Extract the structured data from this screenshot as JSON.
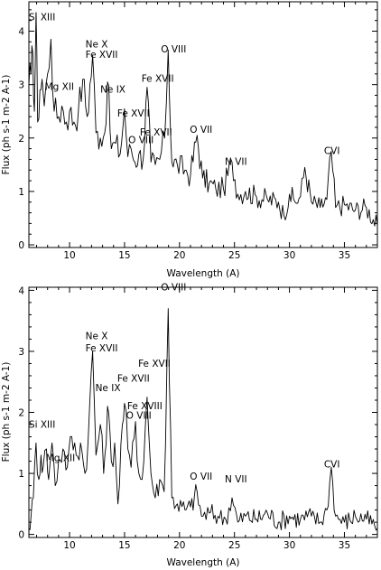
{
  "chart_data": [
    {
      "type": "line",
      "title": "",
      "xlabel": "Wavelength (A)",
      "ylabel": "Flux (ph s-1 m-2 A-1)",
      "xlim": [
        6.3,
        38
      ],
      "ylim": [
        -0.05,
        4.55
      ],
      "xticks": [
        "10",
        "15",
        "20",
        "25",
        "30",
        "35"
      ],
      "yticks": [
        "0",
        "1",
        "2",
        "3",
        "4"
      ],
      "grid": false,
      "series": [
        {
          "x": [
            6.3,
            6.5,
            6.65,
            6.8,
            6.95,
            7.1,
            7.3,
            7.5,
            7.7,
            8.0,
            8.3,
            8.6,
            9.0,
            9.3,
            9.7,
            10.0,
            10.4,
            10.8,
            11.2,
            11.6,
            12.1,
            12.4,
            12.8,
            13.2,
            13.45,
            13.8,
            14.2,
            14.6,
            15.0,
            15.3,
            15.6,
            15.95,
            16.3,
            16.7,
            17.05,
            17.4,
            17.8,
            18.2,
            18.65,
            18.97,
            19.3,
            19.8,
            20.5,
            21.0,
            21.6,
            22.1,
            22.7,
            23.3,
            24.0,
            24.78,
            25.3,
            26.0,
            27.0,
            28.0,
            29.0,
            29.5,
            30.0,
            30.5,
            31.0,
            31.4,
            32.0,
            32.8,
            33.4,
            33.8,
            34.2,
            35.0,
            36.0,
            37.0,
            38.0
          ],
          "values": [
            3.0,
            3.2,
            3.6,
            2.5,
            4.35,
            2.3,
            2.9,
            3.1,
            2.6,
            3.2,
            3.85,
            2.5,
            2.4,
            2.6,
            2.3,
            2.5,
            2.3,
            2.5,
            3.1,
            2.4,
            3.55,
            2.1,
            2.0,
            2.1,
            3.05,
            1.8,
            1.9,
            1.7,
            2.55,
            1.65,
            1.8,
            1.55,
            1.7,
            1.6,
            2.95,
            1.55,
            1.5,
            1.6,
            2.0,
            3.65,
            1.55,
            1.5,
            1.4,
            1.3,
            2.05,
            1.25,
            1.15,
            1.05,
            1.05,
            1.55,
            0.95,
            1.0,
            0.9,
            0.85,
            0.8,
            0.55,
            0.95,
            0.8,
            0.9,
            1.45,
            0.8,
            0.7,
            0.85,
            1.75,
            0.7,
            0.75,
            0.65,
            0.7,
            0.35
          ]
        }
      ],
      "annotations": [
        {
          "text": "Si XIII",
          "x": 6.95,
          "y": 4.2
        },
        {
          "text": "Ne X",
          "x": 12.1,
          "y": 3.7
        },
        {
          "text": "Fe XVII",
          "x": 12.1,
          "y": 3.5
        },
        {
          "text": "Mg XII",
          "x": 8.4,
          "y": 2.9
        },
        {
          "text": "Ne IX",
          "x": 13.45,
          "y": 2.85
        },
        {
          "text": "Fe XVII",
          "x": 15.0,
          "y": 2.4
        },
        {
          "text": "Fe XVII",
          "x": 17.05,
          "y": 2.05
        },
        {
          "text": "O VIII",
          "x": 16.0,
          "y": 1.9
        },
        {
          "text": "O VIII",
          "x": 18.97,
          "y": 3.6
        },
        {
          "text": "Fe XVII",
          "x": 17.2,
          "y": 3.05
        },
        {
          "text": "O VII",
          "x": 21.6,
          "y": 2.1
        },
        {
          "text": "N VII",
          "x": 24.78,
          "y": 1.5
        },
        {
          "text": "CVI",
          "x": 33.8,
          "y": 1.7
        }
      ]
    },
    {
      "type": "line",
      "title": "",
      "xlabel": "Wavelength (A)",
      "ylabel": "Flux (ph s-1 m-2 A-1)",
      "xlim": [
        6.3,
        38
      ],
      "ylim": [
        -0.05,
        4.05
      ],
      "xticks": [
        "10",
        "15",
        "20",
        "25",
        "30",
        "35"
      ],
      "yticks": [
        "0",
        "1",
        "2",
        "3",
        "4"
      ],
      "grid": false,
      "series": [
        {
          "x": [
            6.3,
            6.5,
            6.7,
            6.95,
            7.2,
            7.4,
            7.6,
            7.9,
            8.1,
            8.4,
            8.7,
            9.0,
            9.4,
            9.8,
            10.2,
            10.6,
            11.0,
            11.4,
            11.7,
            12.1,
            12.4,
            12.8,
            13.1,
            13.45,
            13.8,
            14.1,
            14.4,
            14.8,
            15.0,
            15.3,
            15.6,
            16.0,
            16.3,
            16.6,
            17.05,
            17.4,
            17.8,
            18.2,
            18.6,
            18.97,
            19.3,
            19.8,
            20.5,
            21.0,
            21.6,
            22.0,
            22.7,
            23.5,
            24.2,
            24.78,
            25.3,
            26.0,
            27.0,
            28.0,
            29.0,
            30.0,
            31.0,
            32.0,
            32.8,
            33.4,
            33.8,
            34.2,
            35.0,
            36.0,
            37.0,
            38.0
          ],
          "values": [
            0.1,
            0.3,
            0.6,
            1.5,
            0.9,
            1.3,
            1.1,
            1.4,
            0.9,
            1.5,
            0.8,
            1.2,
            1.4,
            1.1,
            1.6,
            1.3,
            1.5,
            1.0,
            1.6,
            3.0,
            1.3,
            1.8,
            1.0,
            2.1,
            1.2,
            1.5,
            0.5,
            1.8,
            2.15,
            1.4,
            1.1,
            1.85,
            1.0,
            0.9,
            2.25,
            1.0,
            0.6,
            0.9,
            0.7,
            3.7,
            0.6,
            0.5,
            0.4,
            0.45,
            0.7,
            0.3,
            0.35,
            0.3,
            0.25,
            0.6,
            0.2,
            0.3,
            0.25,
            0.35,
            0.2,
            0.3,
            0.25,
            0.3,
            0.2,
            0.4,
            1.1,
            0.3,
            0.2,
            0.3,
            0.25,
            0.1
          ]
        }
      ],
      "annotations": [
        {
          "text": "Si XIII",
          "x": 6.95,
          "y": 1.75
        },
        {
          "text": "Mg XII",
          "x": 8.5,
          "y": 1.2
        },
        {
          "text": "Ne X",
          "x": 12.1,
          "y": 3.2
        },
        {
          "text": "Fe XVII",
          "x": 12.1,
          "y": 3.0
        },
        {
          "text": "Ne IX",
          "x": 13.0,
          "y": 2.35
        },
        {
          "text": "Fe XVII",
          "x": 15.0,
          "y": 2.5
        },
        {
          "text": "Fe XVII",
          "x": 16.9,
          "y": 2.75
        },
        {
          "text": "Fe XVIII",
          "x": 15.9,
          "y": 2.05
        },
        {
          "text": "O VIII",
          "x": 15.8,
          "y": 1.9
        },
        {
          "text": "O VIII",
          "x": 18.97,
          "y": 4.0
        },
        {
          "text": "O VII",
          "x": 21.6,
          "y": 0.9
        },
        {
          "text": "N VII",
          "x": 24.78,
          "y": 0.85
        },
        {
          "text": "CVI",
          "x": 33.8,
          "y": 1.1
        }
      ]
    }
  ]
}
